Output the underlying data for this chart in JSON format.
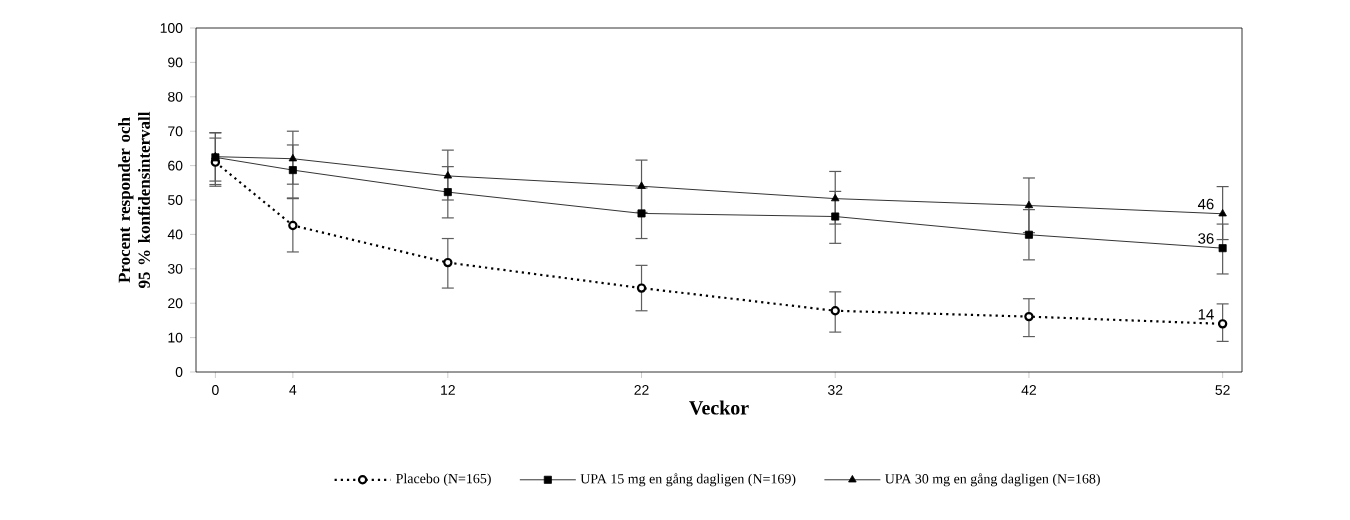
{
  "chart_data": {
    "type": "line",
    "xlabel": "Veckor",
    "ylabel": "Procent responder och 95 % konfidensintervall",
    "x": [
      0,
      4,
      12,
      22,
      32,
      42,
      52
    ],
    "xlim": [
      -1,
      53
    ],
    "xticks": [
      0,
      4,
      12,
      22,
      32,
      42,
      52
    ],
    "ylim": [
      0,
      100
    ],
    "yticks": [
      0,
      10,
      20,
      30,
      40,
      50,
      60,
      70,
      80,
      90,
      100
    ],
    "grid": false,
    "legend": "bottom",
    "series": [
      {
        "name": "Placebo (N=165)",
        "color": "#000000",
        "marker": "circle",
        "line_style": "dotted",
        "values": [
          61,
          42.6,
          31.8,
          24.4,
          17.8,
          16.1,
          14
        ],
        "errors": [
          [
            54,
            68
          ],
          [
            34.9,
            50.6
          ],
          [
            24.4,
            38.8
          ],
          [
            17.8,
            31
          ],
          [
            11.6,
            23.3
          ],
          [
            10.3,
            21.3
          ],
          [
            8.9,
            19.8
          ]
        ],
        "value_labels": [
          null,
          null,
          null,
          null,
          null,
          null,
          "14"
        ]
      },
      {
        "name": "UPA 15 mg en gång dagligen (N=169)",
        "color": "#000000",
        "marker": "square",
        "line_style": "solid",
        "values": [
          62.4,
          58.7,
          52.3,
          46.1,
          45.2,
          39.9,
          36
        ],
        "errors": [
          [
            54.5,
            69.5
          ],
          [
            50.4,
            66
          ],
          [
            44.8,
            59.7
          ],
          [
            38.8,
            53.5
          ],
          [
            37.4,
            52.5
          ],
          [
            32.6,
            47.2
          ],
          [
            28.5,
            43
          ]
        ],
        "value_labels": [
          null,
          null,
          null,
          null,
          null,
          null,
          "36"
        ]
      },
      {
        "name": "UPA 30 mg en gång dagligen (N=168)",
        "color": "#000000",
        "marker": "triangle",
        "line_style": "solid",
        "values": [
          62.6,
          62,
          57,
          54,
          50.4,
          48.4,
          46
        ],
        "errors": [
          [
            55.5,
            69.6
          ],
          [
            54.6,
            70
          ],
          [
            50,
            64.5
          ],
          [
            46.4,
            61.6
          ],
          [
            43,
            58.3
          ],
          [
            40.5,
            56.4
          ],
          [
            38.5,
            53.9
          ]
        ],
        "value_labels": [
          null,
          null,
          null,
          null,
          null,
          null,
          "46"
        ]
      }
    ]
  }
}
